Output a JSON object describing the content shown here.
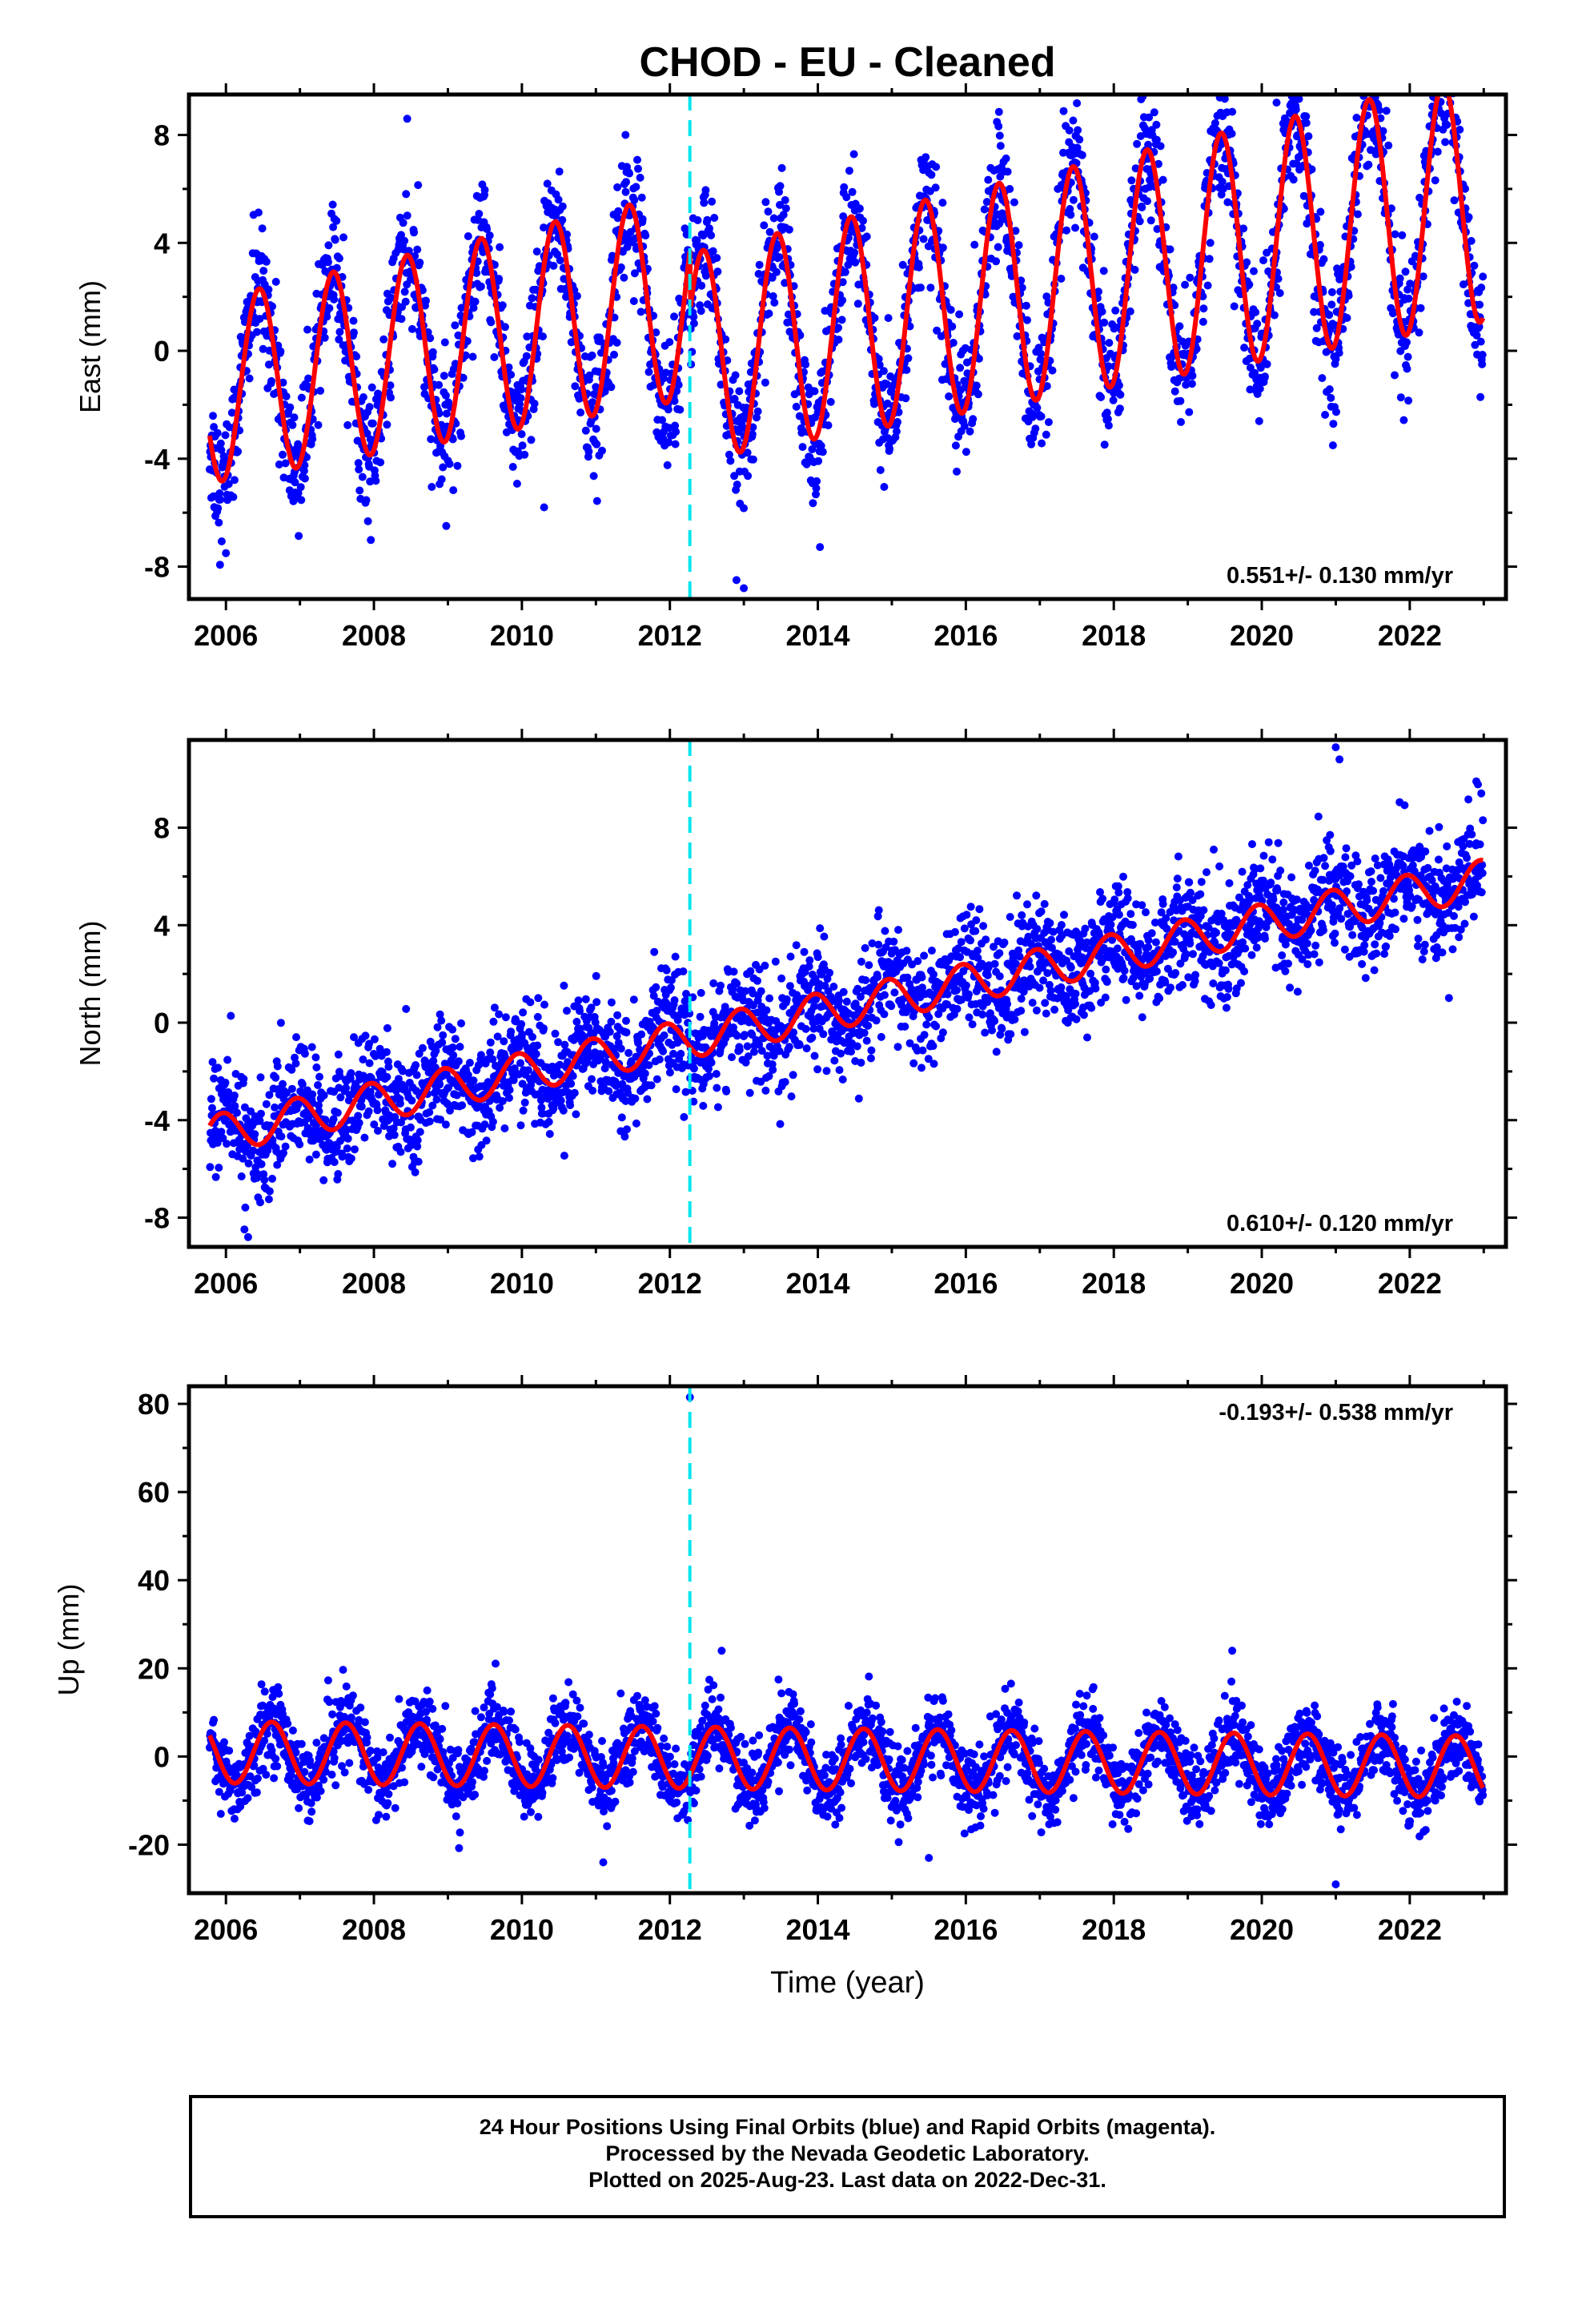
{
  "chart_data": {
    "title": "CHOD  - EU - Cleaned",
    "xlabel": "Time (year)",
    "colors": {
      "points": "#0000ff",
      "model": "#ff0000",
      "offset": "#00e5ee"
    },
    "xlim": [
      2005.5,
      2023.3
    ],
    "offset_epoch": 2012.27,
    "panels": [
      {
        "type": "scatter",
        "ylabel": "East (mm)",
        "ylim": [
          -9.2,
          9.5
        ],
        "yticks": [
          8,
          4,
          0,
          -4,
          -8
        ],
        "ytick_labels": [
          "8",
          "4",
          "0",
          "-4",
          "-8"
        ],
        "xticks": [
          2006,
          2008,
          2010,
          2012,
          2014,
          2016,
          2018,
          2020,
          2022
        ],
        "xtick_labels": [
          "2006",
          "2008",
          "2010",
          "2012",
          "2014",
          "2016",
          "2018",
          "2020",
          "2022"
        ],
        "rate": "0.551+/- 0.130 mm/yr",
        "rate_position": "bottom-right",
        "model": {
          "trend_at_start": -1.5,
          "rate_mm_per_yr": 0.551,
          "amplitude_at_start": 3.4,
          "amplitude_at_end": 4.6,
          "phase_peak_year_fraction": 0.45,
          "offset_step_mm": -2.3
        },
        "scatter_sigma": 1.2,
        "outliers": [
          {
            "x": 2008.45,
            "y": 8.6
          },
          {
            "x": 2011.4,
            "y": 8.0
          },
          {
            "x": 2012.9,
            "y": -8.5
          },
          {
            "x": 2013.0,
            "y": -8.8
          },
          {
            "x": 2020.2,
            "y": 9.2
          },
          {
            "x": 2022.45,
            "y": 8.2
          },
          {
            "x": 2019.4,
            "y": 8.0
          },
          {
            "x": 2006.0,
            "y": -7.5
          },
          {
            "x": 2010.3,
            "y": -5.8
          }
        ]
      },
      {
        "type": "scatter",
        "ylabel": "North (mm)",
        "ylim": [
          -9.2,
          11.6
        ],
        "yticks": [
          8,
          4,
          0,
          -4,
          -8
        ],
        "ytick_labels": [
          "8",
          "4",
          "0",
          "-4",
          "-8"
        ],
        "xticks": [
          2006,
          2008,
          2010,
          2012,
          2014,
          2016,
          2018,
          2020,
          2022
        ],
        "xtick_labels": [
          "2006",
          "2008",
          "2010",
          "2012",
          "2014",
          "2016",
          "2018",
          "2020",
          "2022"
        ],
        "rate": "0.610+/- 0.120 mm/yr",
        "rate_position": "bottom-right",
        "model": {
          "trend_at_start": -4.6,
          "rate_mm_per_yr": 0.61,
          "amplitude_at_start": 0.8,
          "amplitude_at_end": 0.8,
          "phase_peak_year_fraction": 0.95,
          "offset_step_mm": 0
        },
        "scatter_sigma": 1.15,
        "outliers": [
          {
            "x": 2021.0,
            "y": 11.3
          },
          {
            "x": 2021.05,
            "y": 10.8
          },
          {
            "x": 2006.3,
            "y": -8.8
          },
          {
            "x": 2022.9,
            "y": 9.9
          },
          {
            "x": 2019.35,
            "y": 7.1
          }
        ]
      },
      {
        "type": "scatter",
        "ylabel": "Up (mm)",
        "ylim": [
          -31,
          84
        ],
        "yticks": [
          80,
          60,
          40,
          20,
          0,
          -20
        ],
        "ytick_labels": [
          "80",
          "60",
          "40",
          "20",
          "0",
          "-20"
        ],
        "xticks": [
          2006,
          2008,
          2010,
          2012,
          2014,
          2016,
          2018,
          2020,
          2022
        ],
        "xtick_labels": [
          "2006",
          "2008",
          "2010",
          "2012",
          "2014",
          "2016",
          "2018",
          "2020",
          "2022"
        ],
        "rate": "-0.193+/- 0.538 mm/yr",
        "rate_position": "top-right",
        "model": {
          "trend_at_start": 1.0,
          "rate_mm_per_yr": -0.193,
          "amplitude_at_start": 7.0,
          "amplitude_at_end": 7.0,
          "phase_peak_year_fraction": 0.62,
          "offset_step_mm": 0
        },
        "scatter_sigma": 4.2,
        "outliers": [
          {
            "x": 2012.27,
            "y": 81.5
          },
          {
            "x": 2021.0,
            "y": -29
          },
          {
            "x": 2012.7,
            "y": 24
          },
          {
            "x": 2019.6,
            "y": 24
          },
          {
            "x": 2011.1,
            "y": -24
          },
          {
            "x": 2015.5,
            "y": -23
          }
        ]
      }
    ]
  },
  "legend": {
    "line1": "24 Hour Positions Using Final Orbits (blue) and Rapid Orbits (magenta).",
    "line2": "Processed by the Nevada Geodetic Laboratory.",
    "line3": "Plotted on 2025-Aug-23. Last data on 2022-Dec-31."
  }
}
